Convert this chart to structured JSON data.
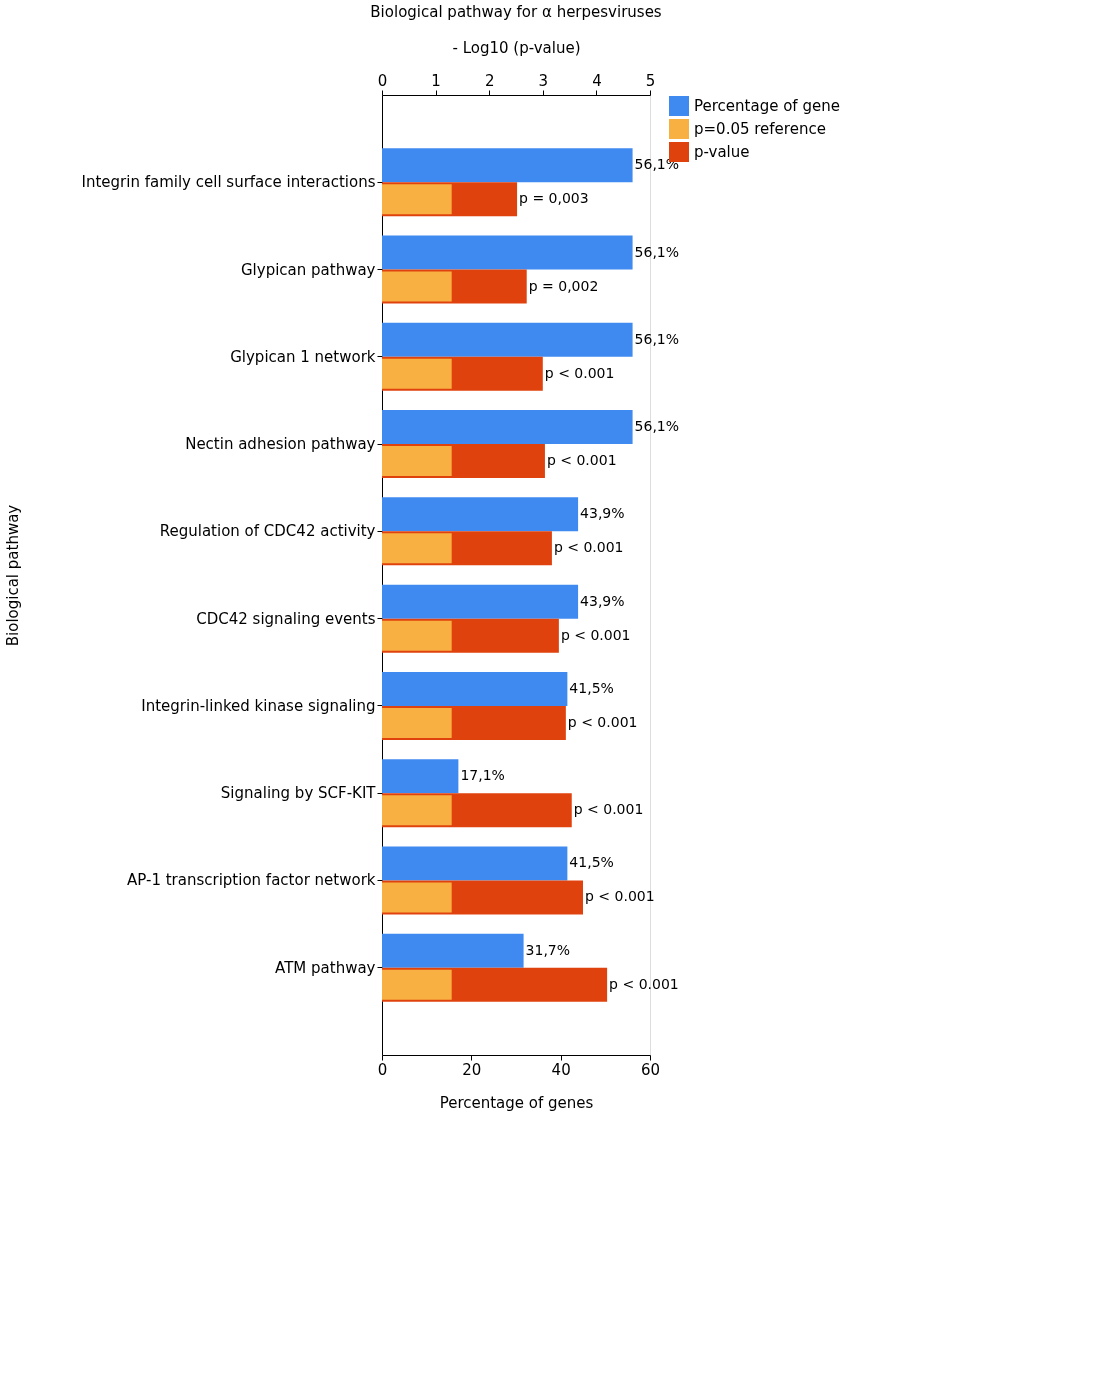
{
  "chart_data": {
    "type": "bar",
    "orientation": "horizontal",
    "title": "Biological pathway for α herpesviruses",
    "xlabel": "Percentage of genes",
    "x2label": "- Log10 (p-value)",
    "ylabel": "Biological pathway",
    "categories": [
      "Integrin family cell surface interactions",
      "Glypican pathway",
      "Glypican 1 network",
      "Nectin adhesion pathway",
      "Regulation of CDC42 activity",
      "CDC42 signaling events",
      "Integrin-linked kinase signaling",
      "Signaling by SCF-KIT",
      "AP-1 transcription factor network",
      "ATM pathway"
    ],
    "series": [
      {
        "name": "Percentage of gene",
        "color": "#3f8af0",
        "values": [
          56.1,
          56.1,
          56.1,
          56.1,
          43.9,
          43.9,
          41.5,
          17.1,
          41.5,
          31.7
        ],
        "value_labels": [
          "56,1%",
          "56,1%",
          "56,1%",
          "56,1%",
          "43,9%",
          "43,9%",
          "41,5%",
          "17,1%",
          "41,5%",
          "31,7%"
        ]
      },
      {
        "name": "p=0.05 reference",
        "color": "#f9b042",
        "axis": "x2",
        "values": [
          1.3,
          1.3,
          1.3,
          1.3,
          1.3,
          1.3,
          1.3,
          1.3,
          1.3,
          1.3
        ]
      },
      {
        "name": "p-value",
        "color": "#e0420e",
        "axis": "x2",
        "values": [
          2.52,
          2.7,
          3.0,
          3.04,
          3.17,
          3.3,
          3.43,
          3.54,
          3.75,
          4.2
        ]
      }
    ],
    "annotations": [
      "p = 0,003",
      "p = 0,002",
      "p < 0.001",
      "p < 0.001",
      "p < 0.001",
      "p < 0.001",
      "p < 0.001",
      "p < 0.001",
      "p < 0.001",
      "p < 0.001"
    ],
    "xlim": [
      0,
      60
    ],
    "xticks": [
      0,
      20,
      40,
      60
    ],
    "x2lim": [
      0,
      5
    ],
    "x2ticks": [
      0,
      1,
      2,
      3,
      4,
      5
    ],
    "grid": false,
    "legend": "top right"
  }
}
